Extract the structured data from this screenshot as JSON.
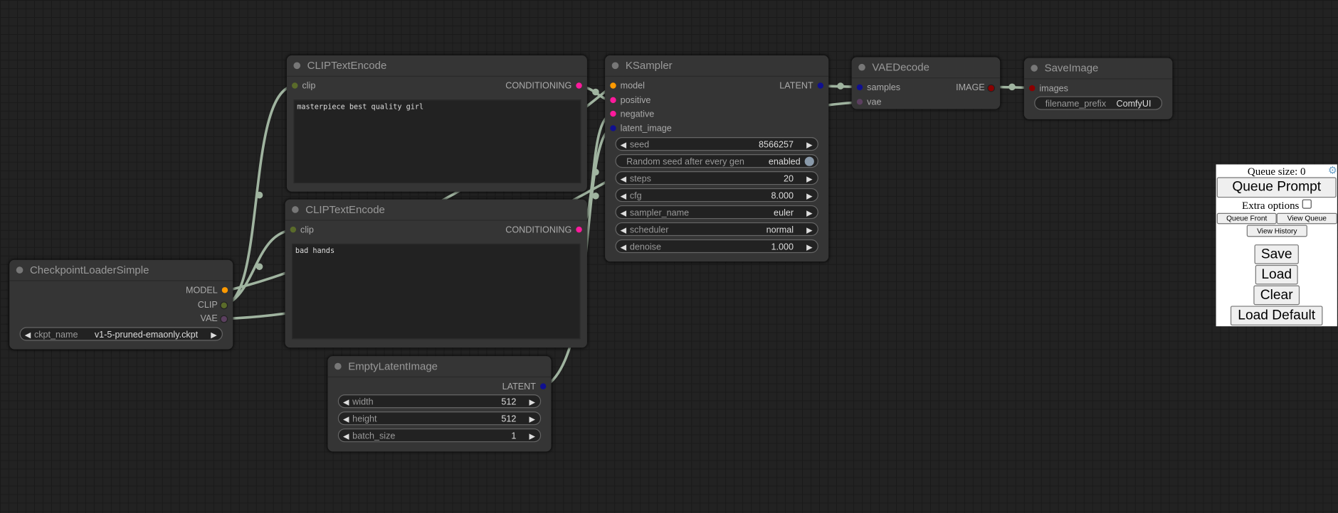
{
  "nodes": {
    "clip1": {
      "title": "CLIPTextEncode",
      "input": "clip",
      "output": "CONDITIONING",
      "text": "masterpiece best quality girl"
    },
    "clip2": {
      "title": "CLIPTextEncode",
      "input": "clip",
      "output": "CONDITIONING",
      "text": "bad hands"
    },
    "ckpt": {
      "title": "CheckpointLoaderSimple",
      "outputs": [
        "MODEL",
        "CLIP",
        "VAE"
      ],
      "ckpt_name_label": "ckpt_name",
      "ckpt_name": "v1-5-pruned-emaonly.ckpt"
    },
    "latent": {
      "title": "EmptyLatentImage",
      "output": "LATENT",
      "widgets": [
        {
          "label": "width",
          "value": "512"
        },
        {
          "label": "height",
          "value": "512"
        },
        {
          "label": "batch_size",
          "value": "1"
        }
      ]
    },
    "ksampler": {
      "title": "KSampler",
      "inputs": [
        "model",
        "positive",
        "negative",
        "latent_image"
      ],
      "output": "LATENT",
      "widgets": [
        {
          "label": "seed",
          "value": "8566257"
        },
        {
          "label": "steps",
          "value": "20"
        },
        {
          "label": "cfg",
          "value": "8.000"
        },
        {
          "label": "sampler_name",
          "value": "euler"
        },
        {
          "label": "scheduler",
          "value": "normal"
        },
        {
          "label": "denoise",
          "value": "1.000"
        }
      ],
      "random_seed": {
        "label": "Random seed after every gen",
        "value": "enabled"
      }
    },
    "vae": {
      "title": "VAEDecode",
      "inputs": [
        "samples",
        "vae"
      ],
      "output": "IMAGE"
    },
    "save": {
      "title": "SaveImage",
      "input": "images",
      "prefix_label": "filename_prefix",
      "prefix": "ComfyUI"
    }
  },
  "colors": {
    "model": "#ff9a00",
    "clip": "#5a6b2a",
    "vae": "#5b3f5f",
    "conditioning": "#ff1a9c",
    "latent": "#101090",
    "image": "#8b0000",
    "wire": "#a0b4a0"
  },
  "panel": {
    "queue_size": "Queue size: 0",
    "queue_prompt": "Queue Prompt",
    "extra_options": "Extra options",
    "queue_front": "Queue Front",
    "view_queue": "View Queue",
    "view_history": "View History",
    "save": "Save",
    "load": "Load",
    "clear": "Clear",
    "load_default": "Load Default"
  }
}
